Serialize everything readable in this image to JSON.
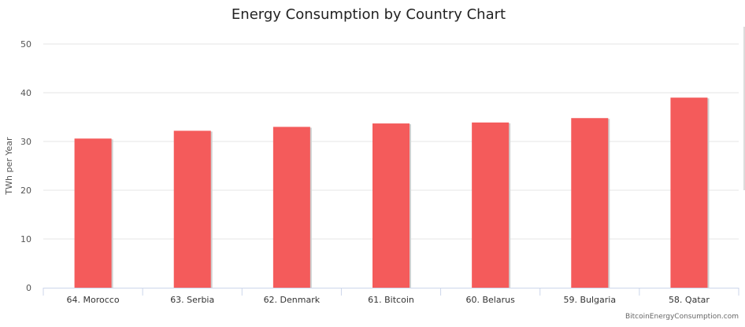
{
  "chart_data": {
    "type": "bar",
    "title": "Energy Consumption by Country Chart",
    "ylabel": "TWh per Year",
    "xlabel": "",
    "categories": [
      "64. Morocco",
      "63. Serbia",
      "62. Denmark",
      "61. Bitcoin",
      "60. Belarus",
      "59. Bulgaria",
      "58. Qatar"
    ],
    "values": [
      30.6,
      32.2,
      33.0,
      33.7,
      33.9,
      34.8,
      39.0
    ],
    "ylim": [
      0,
      50
    ],
    "yticks": [
      "0",
      "10",
      "20",
      "30",
      "40",
      "50"
    ],
    "grid": true,
    "legend": "none",
    "bar_color": "#f45b5b",
    "credit": "BitcoinEnergyConsumption.com"
  }
}
